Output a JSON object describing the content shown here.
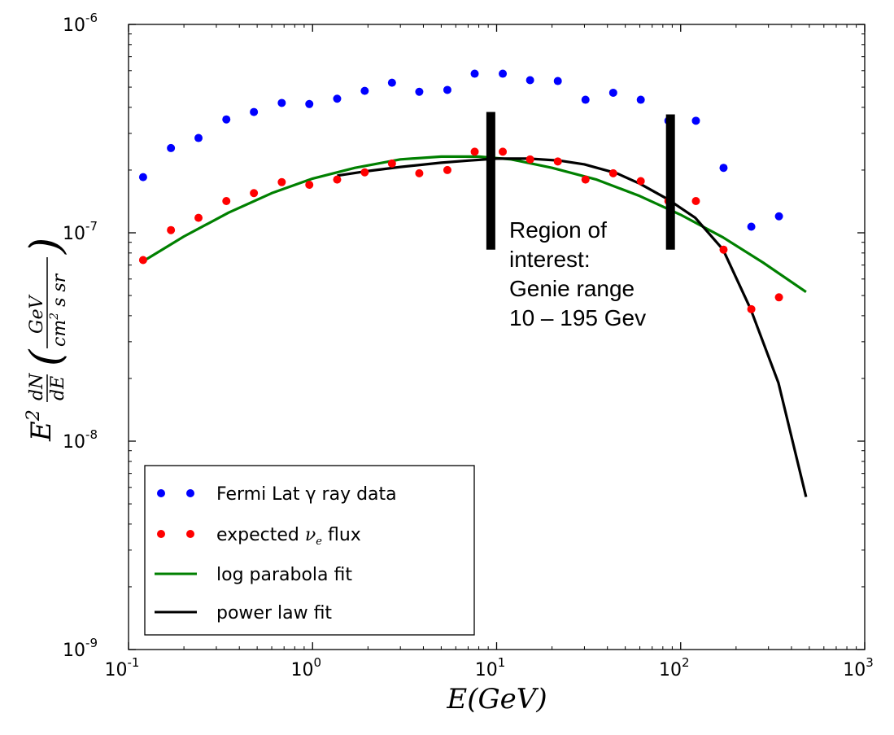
{
  "chart_data": {
    "type": "scatter",
    "xscale": "log",
    "yscale": "log",
    "xlim": [
      0.1,
      1000
    ],
    "ylim": [
      1e-09,
      1e-06
    ],
    "xlabel": "E(GeV)",
    "ylabel": "E^2 dN/dE (GeV / cm^2 s sr)",
    "x_ticks": [
      {
        "value": 0.1,
        "base": "10",
        "exp": "-1"
      },
      {
        "value": 1,
        "base": "10",
        "exp": "0"
      },
      {
        "value": 10,
        "base": "10",
        "exp": "1"
      },
      {
        "value": 100,
        "base": "10",
        "exp": "2"
      },
      {
        "value": 1000,
        "base": "10",
        "exp": "3"
      }
    ],
    "y_ticks": [
      {
        "value": 1e-09,
        "base": "10",
        "exp": "-9"
      },
      {
        "value": 1e-08,
        "base": "10",
        "exp": "-8"
      },
      {
        "value": 1e-07,
        "base": "10",
        "exp": "-7"
      },
      {
        "value": 1e-06,
        "base": "10",
        "exp": "-6"
      }
    ],
    "legend_position": "lower-left",
    "series": [
      {
        "name": "Fermi Lat γ ray data",
        "kind": "scatter",
        "color": "#0000ff",
        "x": [
          0.12,
          0.17,
          0.24,
          0.34,
          0.48,
          0.68,
          0.96,
          1.36,
          1.92,
          2.7,
          3.8,
          5.4,
          7.6,
          10.8,
          15.2,
          21.5,
          30.4,
          43,
          60.7,
          85.8,
          121,
          171,
          242,
          342
        ],
        "y": [
          1.85e-07,
          2.55e-07,
          2.85e-07,
          3.5e-07,
          3.8e-07,
          4.2e-07,
          4.15e-07,
          4.4e-07,
          4.8e-07,
          5.25e-07,
          4.75e-07,
          4.85e-07,
          5.8e-07,
          5.8e-07,
          5.4e-07,
          5.35e-07,
          4.35e-07,
          4.7e-07,
          4.35e-07,
          3.45e-07,
          3.45e-07,
          2.05e-07,
          1.07e-07,
          1.2e-07
        ]
      },
      {
        "name": "expected νe flux",
        "label_main": "expected ",
        "label_math": "ν",
        "label_sub": "e",
        "label_rest": " flux",
        "kind": "scatter",
        "color": "#ff0000",
        "x": [
          0.12,
          0.17,
          0.24,
          0.34,
          0.48,
          0.68,
          0.96,
          1.36,
          1.92,
          2.7,
          3.8,
          5.4,
          7.6,
          10.8,
          15.2,
          21.5,
          30.4,
          43,
          60.7,
          85.8,
          121,
          171,
          242,
          342
        ],
        "y": [
          7.4e-08,
          1.03e-07,
          1.18e-07,
          1.42e-07,
          1.55e-07,
          1.75e-07,
          1.7e-07,
          1.8e-07,
          1.95e-07,
          2.15e-07,
          1.93e-07,
          2e-07,
          2.45e-07,
          2.45e-07,
          2.25e-07,
          2.2e-07,
          1.8e-07,
          1.93e-07,
          1.77e-07,
          1.42e-07,
          1.42e-07,
          8.3e-08,
          4.3e-08,
          4.9e-08
        ]
      },
      {
        "name": "log parabola fit",
        "kind": "line",
        "color": "#008000",
        "x": [
          0.12,
          0.2,
          0.35,
          0.6,
          1,
          1.7,
          3,
          5,
          8,
          12,
          20,
          35,
          60,
          100,
          170,
          280,
          480
        ],
        "y": [
          7.3e-08,
          9.6e-08,
          1.25e-07,
          1.55e-07,
          1.82e-07,
          2.05e-07,
          2.25e-07,
          2.32e-07,
          2.32e-07,
          2.25e-07,
          2.05e-07,
          1.8e-07,
          1.5e-07,
          1.22e-07,
          9.5e-08,
          7.2e-08,
          5.2e-08
        ]
      },
      {
        "name": "power law fit",
        "kind": "line",
        "color": "#000000",
        "x": [
          1.36,
          2,
          3,
          5,
          7,
          10,
          15,
          22,
          30,
          45,
          60,
          85,
          120,
          170,
          240,
          340,
          480
        ],
        "y": [
          1.88e-07,
          1.98e-07,
          2.07e-07,
          2.17e-07,
          2.22e-07,
          2.27e-07,
          2.27e-07,
          2.22e-07,
          2.13e-07,
          1.93e-07,
          1.72e-07,
          1.45e-07,
          1.18e-07,
          8.3e-08,
          4.3e-08,
          1.9e-08,
          5.4e-09
        ]
      }
    ],
    "region_markers": [
      {
        "x": 9.3,
        "y_low": 8.3e-08,
        "y_high": 3.8e-07
      },
      {
        "x": 88,
        "y_low": 8.3e-08,
        "y_high": 3.7e-07
      }
    ],
    "annotation": {
      "lines": [
        "Region of",
        "interest:",
        "Genie range",
        "10 – 195 Gev"
      ]
    }
  }
}
